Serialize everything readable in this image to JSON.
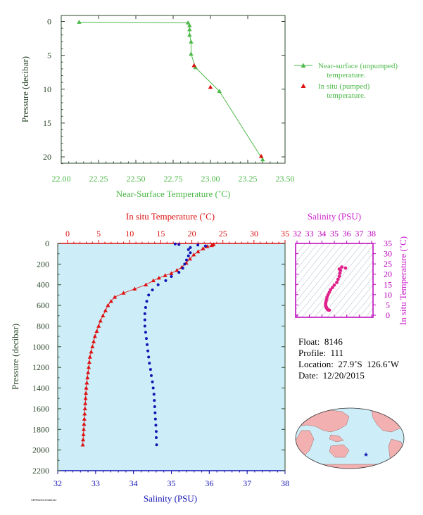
{
  "colors": {
    "near_surface": "#4cb848",
    "temperature": "#dd1111",
    "salinity": "#1414b4",
    "salinity_title": "#cc22cc",
    "magenta_axis": "#bb00bb",
    "plot_bg": "#cdeef8",
    "axis_dark": "#2e4a2e",
    "land": "#f2b0b0"
  },
  "chart_data": [
    {
      "type": "line",
      "xlabel": "Near-Surface Temperature (˚C)",
      "ylabel": "Pressure (decibar)",
      "xlim": [
        22.0,
        23.5
      ],
      "ylim": [
        0,
        22
      ],
      "x_ticks": [
        "22.00",
        "22.25",
        "22.50",
        "22.75",
        "23.00",
        "23.25",
        "23.50"
      ],
      "y_ticks": [
        "0",
        "5",
        "10",
        "15",
        "20"
      ],
      "legend_position": "right",
      "series": [
        {
          "name": "Near-surface (unpumped) temperature.",
          "marker": "triangle",
          "points": [
            [
              22.12,
              0.1
            ],
            [
              22.85,
              0.2
            ],
            [
              22.86,
              0.6
            ],
            [
              22.86,
              1.2
            ],
            [
              22.86,
              2.0
            ],
            [
              22.87,
              3.0
            ],
            [
              22.87,
              4.8
            ],
            [
              22.9,
              6.8
            ],
            [
              23.06,
              10.3
            ],
            [
              23.35,
              20.4
            ]
          ]
        },
        {
          "name": "In situ (pumped) temperature.",
          "marker": "triangle",
          "points": [
            [
              22.89,
              6.5
            ],
            [
              23.0,
              9.7
            ],
            [
              23.34,
              19.9
            ]
          ]
        }
      ]
    },
    {
      "type": "line",
      "ylabel": "Pressure (decibar)",
      "top_xlabel": "In situ Temperature (˚C)",
      "bottom_xlabel": "Salinity (PSU)",
      "temperature_ticks": [
        "0",
        "5",
        "10",
        "15",
        "20",
        "25",
        "30",
        "35"
      ],
      "salinity_ticks": [
        "32",
        "33",
        "34",
        "35",
        "36",
        "37",
        "38"
      ],
      "pressure_ticks": [
        "0",
        "200",
        "400",
        "600",
        "800",
        "1000",
        "1200",
        "1400",
        "1600",
        "1800",
        "2000",
        "2200"
      ],
      "temperature_range": [
        0,
        35
      ],
      "salinity_range": [
        32,
        38
      ],
      "pressure_range": [
        0,
        2200
      ],
      "series": [
        {
          "name": "temperature",
          "marker": "triangle",
          "points": [
            [
              23.5,
              10
            ],
            [
              23.2,
              20
            ],
            [
              22.5,
              30
            ],
            [
              21.8,
              50
            ],
            [
              21.0,
              80
            ],
            [
              20.3,
              110
            ],
            [
              19.7,
              150
            ],
            [
              19.1,
              190
            ],
            [
              18.4,
              230
            ],
            [
              17.6,
              260
            ],
            [
              16.7,
              290
            ],
            [
              15.7,
              310
            ],
            [
              14.7,
              335
            ],
            [
              13.8,
              360
            ],
            [
              12.6,
              400
            ],
            [
              10.8,
              440
            ],
            [
              9.0,
              480
            ],
            [
              7.6,
              520
            ],
            [
              7.0,
              560
            ],
            [
              6.5,
              600
            ],
            [
              6.1,
              650
            ],
            [
              5.7,
              700
            ],
            [
              5.3,
              750
            ],
            [
              5.0,
              800
            ],
            [
              4.7,
              850
            ],
            [
              4.4,
              900
            ],
            [
              4.2,
              950
            ],
            [
              4.0,
              1000
            ],
            [
              3.8,
              1050
            ],
            [
              3.6,
              1100
            ],
            [
              3.5,
              1150
            ],
            [
              3.4,
              1200
            ],
            [
              3.3,
              1250
            ],
            [
              3.2,
              1300
            ],
            [
              3.1,
              1350
            ],
            [
              3.0,
              1400
            ],
            [
              2.95,
              1450
            ],
            [
              2.9,
              1500
            ],
            [
              2.85,
              1550
            ],
            [
              2.8,
              1600
            ],
            [
              2.75,
              1650
            ],
            [
              2.7,
              1700
            ],
            [
              2.65,
              1750
            ],
            [
              2.6,
              1800
            ],
            [
              2.55,
              1850
            ],
            [
              2.5,
              1900
            ],
            [
              2.45,
              1950
            ]
          ]
        },
        {
          "name": "salinity",
          "marker": "circle",
          "points": [
            [
              35.1,
              5
            ],
            [
              35.2,
              10
            ],
            [
              35.7,
              15
            ],
            [
              35.9,
              25
            ],
            [
              35.5,
              40
            ],
            [
              35.45,
              60
            ],
            [
              35.5,
              90
            ],
            [
              35.45,
              120
            ],
            [
              35.4,
              160
            ],
            [
              35.35,
              200
            ],
            [
              35.3,
              240
            ],
            [
              35.2,
              280
            ],
            [
              35.0,
              320
            ],
            [
              34.85,
              360
            ],
            [
              34.65,
              400
            ],
            [
              34.5,
              450
            ],
            [
              34.4,
              500
            ],
            [
              34.35,
              560
            ],
            [
              34.32,
              620
            ],
            [
              34.3,
              680
            ],
            [
              34.3,
              740
            ],
            [
              34.3,
              800
            ],
            [
              34.32,
              860
            ],
            [
              34.34,
              920
            ],
            [
              34.36,
              980
            ],
            [
              34.38,
              1040
            ],
            [
              34.4,
              1100
            ],
            [
              34.42,
              1160
            ],
            [
              34.45,
              1220
            ],
            [
              34.47,
              1280
            ],
            [
              34.5,
              1340
            ],
            [
              34.52,
              1400
            ],
            [
              34.54,
              1460
            ],
            [
              34.55,
              1520
            ],
            [
              34.56,
              1580
            ],
            [
              34.57,
              1640
            ],
            [
              34.58,
              1700
            ],
            [
              34.59,
              1760
            ],
            [
              34.6,
              1820
            ],
            [
              34.6,
              1880
            ],
            [
              34.61,
              1950
            ]
          ]
        }
      ]
    },
    {
      "type": "scatter",
      "title": "Salinity (PSU)",
      "ylabel": "In situ Temperature (˚C)",
      "x_ticks": [
        "32",
        "33",
        "34",
        "35",
        "36",
        "37",
        "38"
      ],
      "y_ticks": [
        "0",
        "5",
        "10",
        "15",
        "20",
        "25",
        "30",
        "35"
      ],
      "xlim": [
        32,
        38
      ],
      "ylim": [
        0,
        35
      ],
      "points": [
        [
          35.6,
          23.5
        ],
        [
          35.9,
          23.0
        ],
        [
          35.4,
          22.5
        ],
        [
          35.5,
          21.8
        ],
        [
          35.45,
          20.5
        ],
        [
          35.4,
          19.0
        ],
        [
          35.3,
          17.5
        ],
        [
          35.2,
          16.0
        ],
        [
          35.0,
          14.7
        ],
        [
          34.85,
          13.5
        ],
        [
          34.7,
          12.4
        ],
        [
          34.6,
          11.2
        ],
        [
          34.5,
          10.0
        ],
        [
          34.42,
          8.8
        ],
        [
          34.38,
          7.7
        ],
        [
          34.33,
          6.7
        ],
        [
          34.3,
          5.8
        ],
        [
          34.3,
          5.0
        ],
        [
          34.32,
          4.4
        ],
        [
          34.35,
          3.9
        ],
        [
          34.38,
          3.5
        ],
        [
          34.42,
          3.1
        ],
        [
          34.46,
          2.8
        ],
        [
          34.5,
          2.6
        ],
        [
          34.55,
          2.5
        ],
        [
          34.6,
          2.45
        ]
      ]
    }
  ],
  "legend": {
    "near_surface": {
      "line1": "Near-surface (unpumped)",
      "line2": "temperature."
    },
    "in_situ": {
      "line1": "In situ (pumped)",
      "line2": "temperature."
    }
  },
  "float_info": {
    "float": "Float:  8146",
    "profile": "Profile:  111",
    "location": "Location:  27.9˚S  126.6˚W",
    "date": "Date:  12/20/2015"
  },
  "stamp": "VERSION 20160111"
}
